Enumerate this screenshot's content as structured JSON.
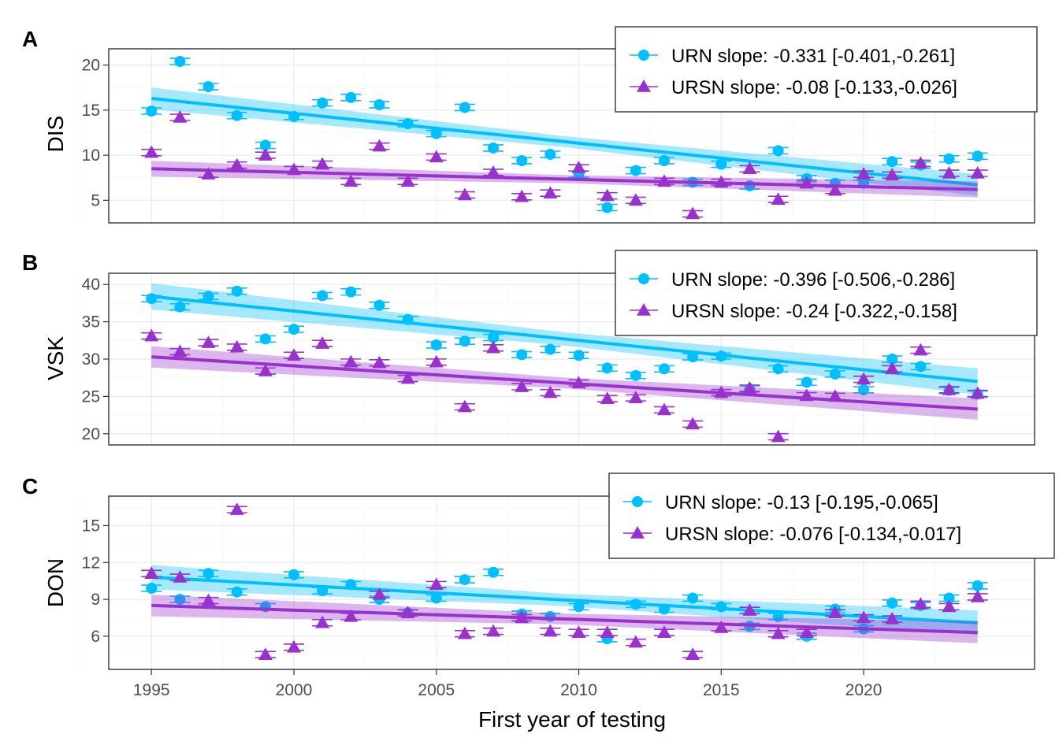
{
  "chart_data": {
    "type": "scatter",
    "xlabel": "First year of testing",
    "xlim": [
      1993.5,
      2026
    ],
    "xticks": [
      1995,
      2000,
      2005,
      2010,
      2015,
      2020
    ],
    "colors": {
      "URN": "#00BFFF",
      "URSN": "#9932CC"
    },
    "panels": [
      {
        "tag": "A",
        "ylabel": "DIS",
        "ylim": [
          2.5,
          21.8
        ],
        "yticks": [
          5,
          10,
          15,
          20
        ],
        "legend": [
          "URN slope: -0.331 [-0.401,-0.261]",
          "URSN slope: -0.08 [-0.133,-0.026]"
        ],
        "series": [
          {
            "name": "URN",
            "x": [
              1995,
              1996,
              1997,
              1998,
              1999,
              2000,
              2001,
              2002,
              2003,
              2004,
              2005,
              2006,
              2007,
              2008,
              2009,
              2010,
              2011,
              2012,
              2013,
              2014,
              2015,
              2016,
              2017,
              2018,
              2019,
              2020,
              2021,
              2022,
              2023,
              2024
            ],
            "y": [
              14.9,
              20.4,
              17.6,
              14.4,
              11.1,
              14.3,
              15.8,
              16.4,
              15.6,
              13.5,
              12.4,
              15.3,
              10.8,
              9.4,
              10.1,
              7.9,
              4.2,
              8.3,
              9.4,
              7.0,
              9.0,
              6.6,
              10.5,
              7.4,
              6.9,
              6.9,
              9.3,
              8.9,
              9.6,
              9.9
            ],
            "trend": [
              16.3,
              6.7
            ],
            "band": 1.1
          },
          {
            "name": "URSN",
            "x": [
              1995,
              1996,
              1997,
              1998,
              1999,
              2000,
              2001,
              2002,
              2003,
              2004,
              2005,
              2006,
              2007,
              2008,
              2009,
              2010,
              2011,
              2012,
              2013,
              2014,
              2015,
              2016,
              2017,
              2018,
              2019,
              2020,
              2021,
              2022,
              2023,
              2024
            ],
            "y": [
              10.3,
              14.2,
              7.9,
              8.9,
              10.0,
              8.4,
              9.0,
              7.1,
              11.0,
              7.1,
              9.8,
              5.6,
              8.1,
              5.4,
              5.8,
              8.6,
              5.5,
              5.0,
              7.1,
              3.5,
              7.0,
              8.5,
              5.1,
              6.9,
              6.1,
              7.9,
              7.8,
              9.1,
              8.0,
              8.0
            ],
            "trend": [
              8.5,
              6.2
            ],
            "band": 0.8
          }
        ]
      },
      {
        "tag": "B",
        "ylabel": "VSK",
        "ylim": [
          18.5,
          41.5
        ],
        "yticks": [
          20,
          25,
          30,
          35,
          40
        ],
        "legend": [
          "URN slope: -0.396 [-0.506,-0.286]",
          "URSN slope: -0.24 [-0.322,-0.158]"
        ],
        "series": [
          {
            "name": "URN",
            "x": [
              1995,
              1996,
              1997,
              1998,
              1999,
              2000,
              2001,
              2002,
              2003,
              2004,
              2005,
              2006,
              2007,
              2008,
              2009,
              2010,
              2011,
              2012,
              2013,
              2014,
              2015,
              2016,
              2017,
              2018,
              2019,
              2020,
              2021,
              2022,
              2023,
              2024
            ],
            "y": [
              38.1,
              37.0,
              38.4,
              39.1,
              32.7,
              34.0,
              38.5,
              39.0,
              37.2,
              35.3,
              31.9,
              32.4,
              32.9,
              30.6,
              31.3,
              30.5,
              28.8,
              27.8,
              28.7,
              30.3,
              30.4,
              26.0,
              28.7,
              26.9,
              28.0,
              25.9,
              30.0,
              29.0,
              25.8,
              25.3
            ],
            "trend": [
              38.4,
              27.0
            ],
            "band": 1.6
          },
          {
            "name": "URSN",
            "x": [
              1995,
              1996,
              1997,
              1998,
              1999,
              2000,
              2001,
              2002,
              2003,
              2004,
              2005,
              2006,
              2007,
              2008,
              2009,
              2010,
              2011,
              2012,
              2013,
              2014,
              2015,
              2016,
              2017,
              2018,
              2019,
              2020,
              2021,
              2022,
              2023,
              2024
            ],
            "y": [
              33.1,
              31.0,
              32.2,
              31.6,
              28.4,
              30.5,
              32.1,
              29.6,
              29.5,
              27.4,
              29.6,
              23.6,
              31.5,
              26.3,
              25.5,
              26.8,
              24.7,
              24.8,
              23.2,
              21.3,
              25.5,
              26.1,
              19.6,
              25.1,
              25.0,
              27.3,
              28.7,
              31.2,
              25.9,
              25.4
            ],
            "trend": [
              30.3,
              23.3
            ],
            "band": 1.3
          }
        ]
      },
      {
        "tag": "C",
        "ylabel": "DON",
        "ylim": [
          3.3,
          17.4
        ],
        "yticks": [
          6,
          9,
          12,
          15
        ],
        "legend": [
          "URN slope: -0.13 [-0.195,-0.065]",
          "URSN slope: -0.076 [-0.134,-0.017]"
        ],
        "series": [
          {
            "name": "URN",
            "x": [
              1995,
              1996,
              1997,
              1998,
              1999,
              2000,
              2001,
              2002,
              2003,
              2004,
              2005,
              2006,
              2007,
              2008,
              2009,
              2010,
              2011,
              2012,
              2013,
              2014,
              2015,
              2016,
              2017,
              2018,
              2019,
              2020,
              2021,
              2022,
              2023,
              2024
            ],
            "y": [
              9.9,
              9.0,
              11.1,
              9.6,
              8.4,
              11.0,
              9.7,
              10.2,
              9.0,
              7.9,
              9.1,
              10.6,
              11.2,
              7.8,
              7.6,
              8.4,
              5.8,
              8.6,
              8.2,
              9.1,
              8.4,
              6.8,
              7.6,
              6.0,
              8.2,
              6.6,
              8.7,
              8.5,
              9.1,
              10.1
            ],
            "trend": [
              10.8,
              7.1
            ],
            "band": 0.9
          },
          {
            "name": "URSN",
            "x": [
              1995,
              1996,
              1997,
              1998,
              1999,
              2000,
              2001,
              2002,
              2003,
              2004,
              2005,
              2006,
              2007,
              2008,
              2009,
              2010,
              2011,
              2012,
              2013,
              2014,
              2015,
              2016,
              2017,
              2018,
              2019,
              2020,
              2021,
              2022,
              2023,
              2024
            ],
            "y": [
              11.1,
              10.8,
              8.9,
              16.3,
              4.5,
              5.1,
              7.1,
              7.6,
              9.4,
              7.9,
              10.2,
              6.2,
              6.4,
              7.5,
              6.4,
              6.3,
              6.3,
              5.5,
              6.3,
              4.5,
              6.7,
              8.1,
              6.2,
              6.3,
              7.9,
              7.5,
              7.4,
              8.6,
              8.4,
              9.2
            ],
            "trend": [
              8.5,
              6.3
            ],
            "band": 0.8
          }
        ]
      }
    ]
  }
}
